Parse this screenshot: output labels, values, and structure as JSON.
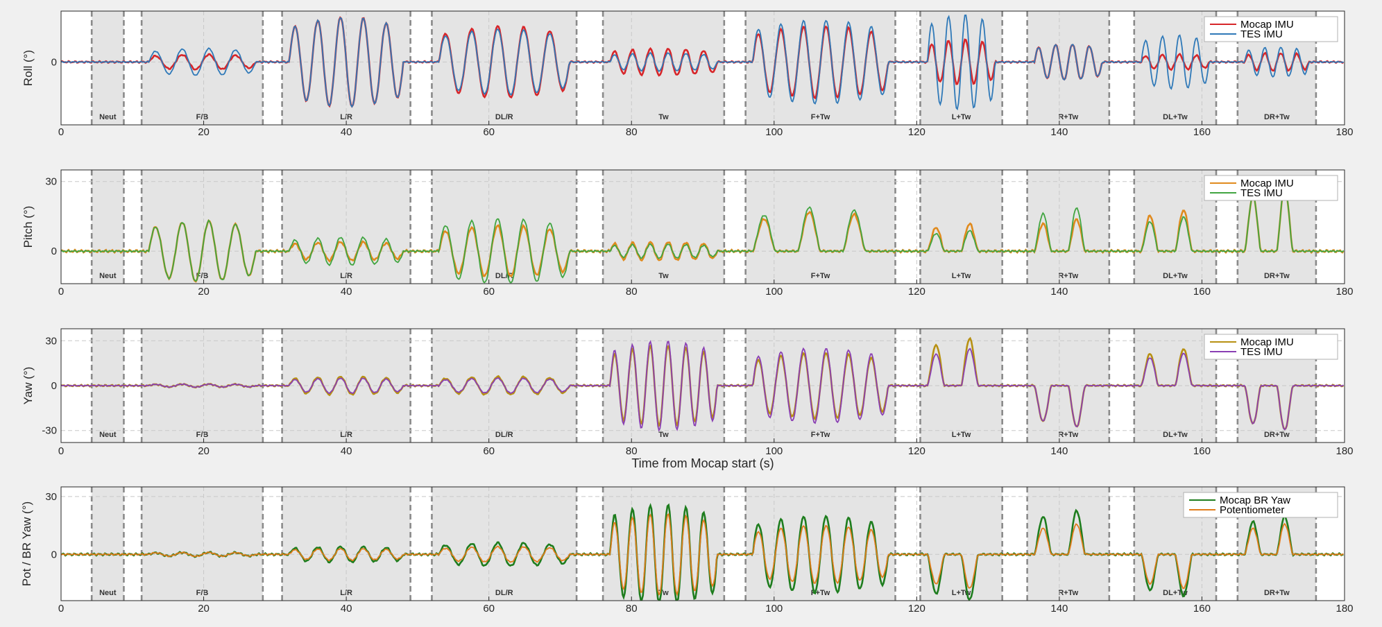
{
  "chart_data": {
    "type": "line",
    "xlabel": "Time from Mocap start (s)",
    "xlim": [
      0,
      180
    ],
    "xticks": [
      0,
      20,
      40,
      60,
      80,
      100,
      120,
      140,
      160,
      180
    ],
    "segments": [
      {
        "label": "Neut",
        "start": 4.3,
        "end": 8.8
      },
      {
        "label": "F/B",
        "start": 11.3,
        "end": 28.3
      },
      {
        "label": "L/R",
        "start": 31.0,
        "end": 49.0
      },
      {
        "label": "DL/R",
        "start": 52.0,
        "end": 72.3
      },
      {
        "label": "Tw",
        "start": 76.0,
        "end": 93.0
      },
      {
        "label": "F+Tw",
        "start": 96.0,
        "end": 117.0
      },
      {
        "label": "L+Tw",
        "start": 120.5,
        "end": 132.0
      },
      {
        "label": "R+Tw",
        "start": 135.5,
        "end": 147.0
      },
      {
        "label": "DL+Tw",
        "start": 150.5,
        "end": 162.0
      },
      {
        "label": "DR+Tw",
        "start": 165.0,
        "end": 176.0
      }
    ],
    "panels": [
      {
        "ylabel": "Roll (°)",
        "yrange": [
          -42,
          34
        ],
        "yticks": [
          {
            "v": 0,
            "label": "0"
          }
        ],
        "legend": "top-right",
        "series": [
          {
            "name": "Mocap IMU",
            "color": "#d7262a",
            "amps": [
              1,
              5,
              30,
              24,
              9,
              24,
              15,
              12,
              5,
              6
            ]
          },
          {
            "name": "TES IMU",
            "color": "#2f79b8",
            "amps": [
              1,
              9,
              30,
              22,
              6,
              28,
              32,
              12,
              18,
              10
            ]
          }
        ]
      },
      {
        "ylabel": "Pitch (°)",
        "yrange": [
          -14,
          35
        ],
        "yticks": [
          {
            "v": 30,
            "label": "30"
          },
          {
            "v": 0,
            "label": "0"
          }
        ],
        "legend": "top-right",
        "series": [
          {
            "name": "Mocap IMU",
            "color": "#e08a1d",
            "amps": [
              1,
              13,
              4,
              11,
              4,
              17,
              12,
              14,
              18,
              28
            ]
          },
          {
            "name": "TES IMU",
            "color": "#41a541",
            "amps": [
              1,
              13,
              6,
              14,
              3,
              19,
              9,
              19,
              15,
              28
            ]
          }
        ]
      },
      {
        "ylabel": "Yaw (°)",
        "yrange": [
          -38,
          38
        ],
        "yticks": [
          {
            "v": 30,
            "label": "30"
          },
          {
            "v": 0,
            "label": "0"
          },
          {
            "v": -30,
            "label": "-30"
          }
        ],
        "legend": "top-right",
        "series": [
          {
            "name": "Mocap IMU",
            "color": "#b79012",
            "amps": [
              0.5,
              1,
              6,
              6,
              27,
              22,
              32,
              28,
              25,
              30
            ]
          },
          {
            "name": "TES IMU",
            "color": "#8a3fb3",
            "amps": [
              0.5,
              1,
              5,
              5,
              30,
              25,
              25,
              28,
              22,
              30
            ]
          }
        ]
      },
      {
        "ylabel": "Pot / BR Yaw (°)",
        "yrange": [
          -24,
          35
        ],
        "yticks": [
          {
            "v": 30,
            "label": "30"
          },
          {
            "v": 0,
            "label": "0"
          }
        ],
        "legend": "top-right",
        "series": [
          {
            "name": "Mocap BR Yaw",
            "color": "#1e7d1e",
            "amps": [
              0.5,
              1,
              4,
              6,
              26,
              20,
              24,
              23,
              22,
              20
            ]
          },
          {
            "name": "Potentiometer",
            "color": "#e07b1a",
            "amps": [
              0.5,
              1,
              3,
              4,
              21,
              15,
              18,
              16,
              18,
              16
            ]
          }
        ]
      }
    ]
  }
}
